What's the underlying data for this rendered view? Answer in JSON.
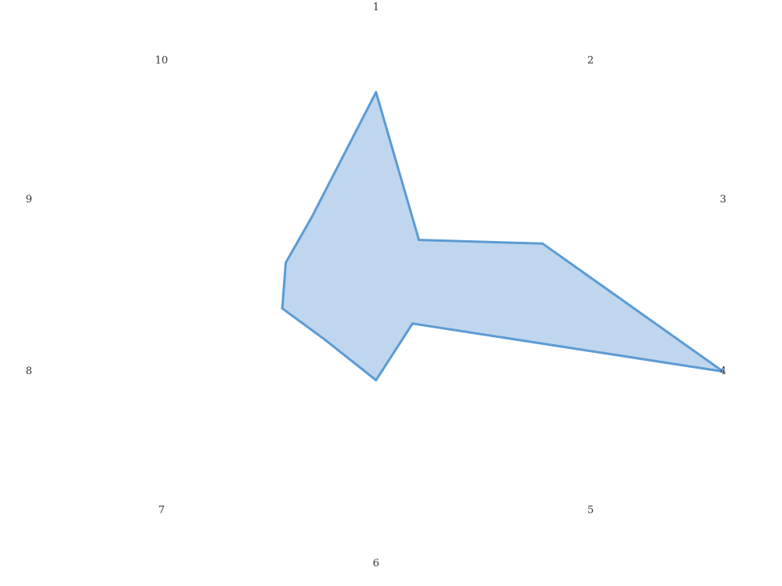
{
  "chart_data": {
    "type": "radar",
    "categories": [
      "1",
      "2",
      "3",
      "4",
      "5",
      "6",
      "7",
      "8",
      "9",
      "10"
    ],
    "series": [
      {
        "values": [
          0.69,
          0.2,
          0.48,
          1.0,
          0.17,
          0.34,
          0.24,
          0.27,
          0.26,
          0.3
        ],
        "stroke_color": "#5b9bd5",
        "fill_color": "#bfd6ee"
      }
    ],
    "rlim": [
      0,
      1
    ],
    "grid": false,
    "legend": "none"
  }
}
